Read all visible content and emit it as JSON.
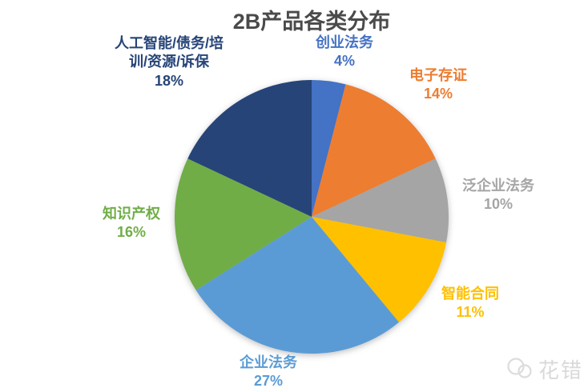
{
  "chart_data": {
    "type": "pie",
    "title": "2B产品各类分布",
    "start_angle_deg": 0,
    "direction": "clockwise",
    "labels_outside": true,
    "legend_position": "none",
    "slices": [
      {
        "label": "创业法务",
        "value_pct": 4,
        "pct_label": "4%",
        "color": "#4472C4"
      },
      {
        "label": "电子存证",
        "value_pct": 14,
        "pct_label": "14%",
        "color": "#ED7D31"
      },
      {
        "label": "泛企业法务",
        "value_pct": 10,
        "pct_label": "10%",
        "color": "#A5A5A5"
      },
      {
        "label": "智能合同",
        "value_pct": 11,
        "pct_label": "11%",
        "color": "#FFC000"
      },
      {
        "label": "企业法务",
        "value_pct": 27,
        "pct_label": "27%",
        "color": "#5B9BD5"
      },
      {
        "label": "知识产权",
        "value_pct": 16,
        "pct_label": "16%",
        "color": "#70AD47"
      },
      {
        "label": "人工智能/债务/培训/资源/诉保",
        "value_pct": 18,
        "pct_label": "18%",
        "label_lines": [
          "人工智能/债务/培",
          "训/资源/诉保"
        ],
        "color": "#264478"
      }
    ]
  },
  "title_color": "#4a4a4a",
  "watermark": {
    "text": "花错",
    "icon": "overlapping-circles-logo-icon",
    "color": "#d9d9d9"
  }
}
